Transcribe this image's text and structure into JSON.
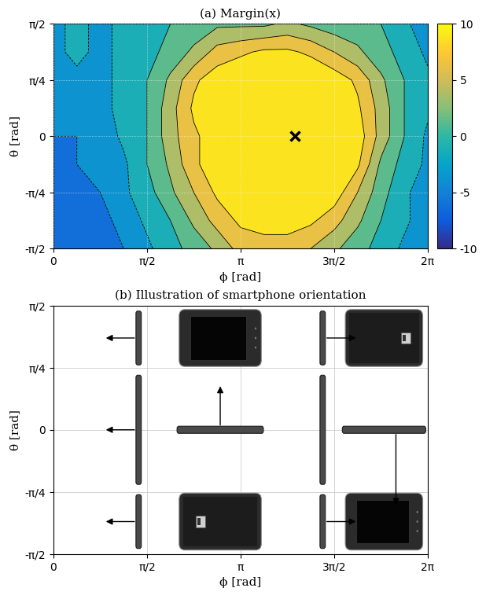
{
  "chart_data": [
    {
      "type": "contour",
      "title": "(a) Margin(x)",
      "x_label": "ϕ [rad]",
      "y_label": "θ [rad]",
      "x": [
        0,
        0.3927,
        0.7854,
        1.1781,
        1.5708,
        1.9635,
        2.3562,
        2.7489,
        3.1416,
        3.5343,
        3.927,
        4.3197,
        4.7124,
        5.1051,
        5.4978,
        5.8905,
        6.2832
      ],
      "y": [
        -1.5708,
        -1.1781,
        -0.7854,
        -0.3927,
        0,
        0.3927,
        0.7854,
        1.1781,
        1.5708
      ],
      "cells": [
        [
          -7,
          -7,
          -6,
          -5,
          -3,
          -1,
          1,
          3,
          6,
          6,
          6,
          5,
          3,
          1,
          -1,
          -3,
          -4
        ],
        [
          -7,
          -7,
          -6,
          -4,
          -2,
          0,
          3,
          6,
          8,
          9,
          9,
          8,
          6,
          3,
          0,
          -2,
          -4
        ],
        [
          -6,
          -6,
          -5,
          -3,
          -1,
          2,
          5,
          8,
          10,
          10,
          10,
          10,
          9,
          5,
          1,
          -2,
          -4
        ],
        [
          -6,
          -5,
          -4,
          -3,
          0,
          3,
          7,
          9,
          10,
          10,
          10,
          10,
          10,
          8,
          2,
          -1,
          -3
        ],
        [
          -5,
          -5,
          -4,
          -2,
          0,
          4,
          7,
          9,
          10,
          10,
          10,
          10,
          10,
          9,
          4,
          0,
          -3
        ],
        [
          -4,
          -4,
          -3,
          -2,
          0,
          4,
          8,
          10,
          10,
          10,
          10,
          10,
          10,
          8,
          4,
          0,
          -2
        ],
        [
          -3,
          -3,
          -3,
          -2,
          0,
          3,
          7,
          9,
          10,
          10,
          10,
          10,
          9,
          7,
          3,
          0,
          -2
        ],
        [
          -3,
          -2,
          -3,
          -2,
          -1,
          1,
          3,
          6,
          7,
          8,
          8,
          7,
          5,
          3,
          1,
          -1,
          -3
        ],
        [
          -3,
          -2,
          -3,
          -2,
          -1,
          0,
          1,
          2,
          2,
          2,
          3,
          2,
          1,
          1,
          0,
          -2,
          -4
        ]
      ],
      "levels": [
        -10,
        -7.5,
        -5,
        -2.5,
        0,
        2.5,
        5,
        7.5,
        10
      ],
      "colorbar": {
        "range": [
          -10,
          10
        ],
        "ticks": [
          -10,
          -5,
          0,
          5,
          10
        ]
      },
      "xlim": [
        0,
        6.2832
      ],
      "ylim": [
        -1.5708,
        1.5708
      ],
      "xticks": [
        0,
        {
          "value": 1.5708,
          "label": "π/2"
        },
        {
          "value": 3.1416,
          "label": "π"
        },
        {
          "value": 4.7124,
          "label": "3π/2"
        },
        {
          "value": 6.2832,
          "label": "2π"
        }
      ],
      "yticks": [
        {
          "value": -1.5708,
          "label": "-π/2"
        },
        {
          "value": -0.7854,
          "label": "-π/4"
        },
        0,
        {
          "value": 0.7854,
          "label": "π/4"
        },
        {
          "value": 1.5708,
          "label": "π/2"
        }
      ],
      "grid": true,
      "series": [
        {
          "type": "scatter",
          "marker": "x",
          "color": "#000000",
          "x": [
            4.05
          ],
          "y": [
            0
          ]
        }
      ]
    },
    {
      "type": "illustration",
      "title": "(b) Illustration of smartphone orientation",
      "x_label": "ϕ [rad]",
      "y_label": "θ [rad]",
      "xlim": [
        0,
        6.2832
      ],
      "ylim": [
        -1.5708,
        1.5708
      ],
      "xticks": [
        0,
        {
          "value": 1.5708,
          "label": "π/2"
        },
        {
          "value": 3.1416,
          "label": "π"
        },
        {
          "value": 4.7124,
          "label": "3π/2"
        },
        {
          "value": 6.2832,
          "label": "2π"
        }
      ],
      "yticks": [
        {
          "value": -1.5708,
          "label": "-π/2"
        },
        {
          "value": -0.7854,
          "label": "-π/4"
        },
        0,
        {
          "value": 0.7854,
          "label": "π/4"
        },
        {
          "value": 1.5708,
          "label": "π/2"
        }
      ],
      "grid": true
    }
  ]
}
